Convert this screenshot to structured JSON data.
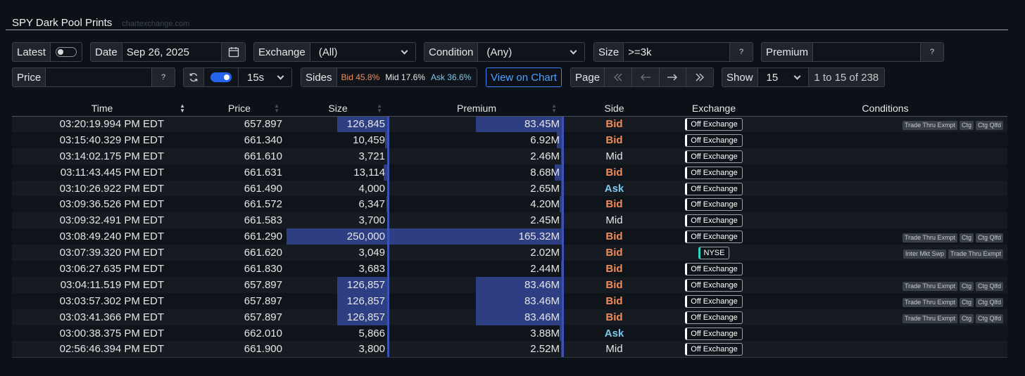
{
  "header": {
    "title": "SPY Dark Pool Prints",
    "source": "chartexchange.com"
  },
  "controls": {
    "latest_label": "Latest",
    "date_label": "Date",
    "date_value": "Sep 26, 2025",
    "exchange_label": "Exchange",
    "exchange_value": "(All)",
    "condition_label": "Condition",
    "condition_value": "(Any)",
    "size_label": "Size",
    "size_value": ">=3k",
    "premium_label": "Premium",
    "premium_value": "",
    "price_label": "Price",
    "price_value": "",
    "help": "?",
    "refresh_interval": "15s",
    "sides_label": "Sides",
    "sides_bid": "Bid 45.8%",
    "sides_mid": "Mid 17.6%",
    "sides_ask": "Ask 36.6%",
    "view_chart": "View on Chart",
    "page_label": "Page",
    "show_label": "Show",
    "show_value": "15",
    "range_text": "1 to 15 of 238"
  },
  "table": {
    "columns": [
      "Time",
      "Price",
      "Size",
      "Premium",
      "Side",
      "Exchange",
      "Conditions"
    ],
    "rows": [
      {
        "time": "03:20:19.994 PM EDT",
        "price": "657.897",
        "size": "126,845",
        "premium": "83.45M",
        "side": "Bid",
        "exchange": "Off Exchange",
        "conditions": [
          "Trade Thru Exmpt",
          "Ctg",
          "Ctg Qlfd"
        ],
        "size_frac": 0.507,
        "prem_frac": 0.505
      },
      {
        "time": "03:15:40.329 PM EDT",
        "price": "661.340",
        "size": "10,459",
        "premium": "6.92M",
        "side": "Bid",
        "exchange": "Off Exchange",
        "conditions": [],
        "size_frac": 0.042,
        "prem_frac": 0.042
      },
      {
        "time": "03:14:02.175 PM EDT",
        "price": "661.610",
        "size": "3,721",
        "premium": "2.46M",
        "side": "Mid",
        "exchange": "Off Exchange",
        "conditions": [],
        "size_frac": 0.015,
        "prem_frac": 0.015
      },
      {
        "time": "03:11:43.445 PM EDT",
        "price": "661.631",
        "size": "13,114",
        "premium": "8.68M",
        "side": "Bid",
        "exchange": "Off Exchange",
        "conditions": [],
        "size_frac": 0.052,
        "prem_frac": 0.052
      },
      {
        "time": "03:10:26.922 PM EDT",
        "price": "661.490",
        "size": "4,000",
        "premium": "2.65M",
        "side": "Ask",
        "exchange": "Off Exchange",
        "conditions": [],
        "size_frac": 0.016,
        "prem_frac": 0.016
      },
      {
        "time": "03:09:36.526 PM EDT",
        "price": "661.572",
        "size": "6,347",
        "premium": "4.20M",
        "side": "Bid",
        "exchange": "Off Exchange",
        "conditions": [],
        "size_frac": 0.025,
        "prem_frac": 0.025
      },
      {
        "time": "03:09:32.491 PM EDT",
        "price": "661.583",
        "size": "3,700",
        "premium": "2.45M",
        "side": "Mid",
        "exchange": "Off Exchange",
        "conditions": [],
        "size_frac": 0.015,
        "prem_frac": 0.015
      },
      {
        "time": "03:08:49.240 PM EDT",
        "price": "661.290",
        "size": "250,000",
        "premium": "165.32M",
        "side": "Bid",
        "exchange": "Off Exchange",
        "conditions": [
          "Trade Thru Exmpt",
          "Ctg",
          "Ctg Qlfd"
        ],
        "size_frac": 1.0,
        "prem_frac": 1.0
      },
      {
        "time": "03:07:39.320 PM EDT",
        "price": "661.620",
        "size": "3,049",
        "premium": "2.02M",
        "side": "Bid",
        "exchange": "NYSE",
        "conditions": [
          "Inter Mkt Swp",
          "Trade Thru Exmpt"
        ],
        "size_frac": 0.012,
        "prem_frac": 0.012
      },
      {
        "time": "03:06:27.635 PM EDT",
        "price": "661.830",
        "size": "3,683",
        "premium": "2.44M",
        "side": "Bid",
        "exchange": "Off Exchange",
        "conditions": [],
        "size_frac": 0.015,
        "prem_frac": 0.015
      },
      {
        "time": "03:04:11.519 PM EDT",
        "price": "657.897",
        "size": "126,857",
        "premium": "83.46M",
        "side": "Bid",
        "exchange": "Off Exchange",
        "conditions": [
          "Trade Thru Exmpt",
          "Ctg",
          "Ctg Qlfd"
        ],
        "size_frac": 0.507,
        "prem_frac": 0.505
      },
      {
        "time": "03:03:57.302 PM EDT",
        "price": "657.897",
        "size": "126,857",
        "premium": "83.46M",
        "side": "Bid",
        "exchange": "Off Exchange",
        "conditions": [
          "Trade Thru Exmpt",
          "Ctg",
          "Ctg Qlfd"
        ],
        "size_frac": 0.507,
        "prem_frac": 0.505
      },
      {
        "time": "03:03:41.366 PM EDT",
        "price": "657.897",
        "size": "126,857",
        "premium": "83.46M",
        "side": "Bid",
        "exchange": "Off Exchange",
        "conditions": [
          "Trade Thru Exmpt",
          "Ctg",
          "Ctg Qlfd"
        ],
        "size_frac": 0.507,
        "prem_frac": 0.505
      },
      {
        "time": "03:00:38.375 PM EDT",
        "price": "662.010",
        "size": "5,866",
        "premium": "3.88M",
        "side": "Ask",
        "exchange": "Off Exchange",
        "conditions": [],
        "size_frac": 0.023,
        "prem_frac": 0.023
      },
      {
        "time": "02:56:46.394 PM EDT",
        "price": "661.900",
        "size": "3,800",
        "premium": "2.52M",
        "side": "Mid",
        "exchange": "Off Exchange",
        "conditions": [],
        "size_frac": 0.015,
        "prem_frac": 0.015
      }
    ]
  },
  "colors": {
    "bid": "#f08c5a",
    "ask": "#7cc7ee",
    "mid": "#e6e6e6",
    "bar": "#2d3f82",
    "accent": "#2563eb"
  }
}
